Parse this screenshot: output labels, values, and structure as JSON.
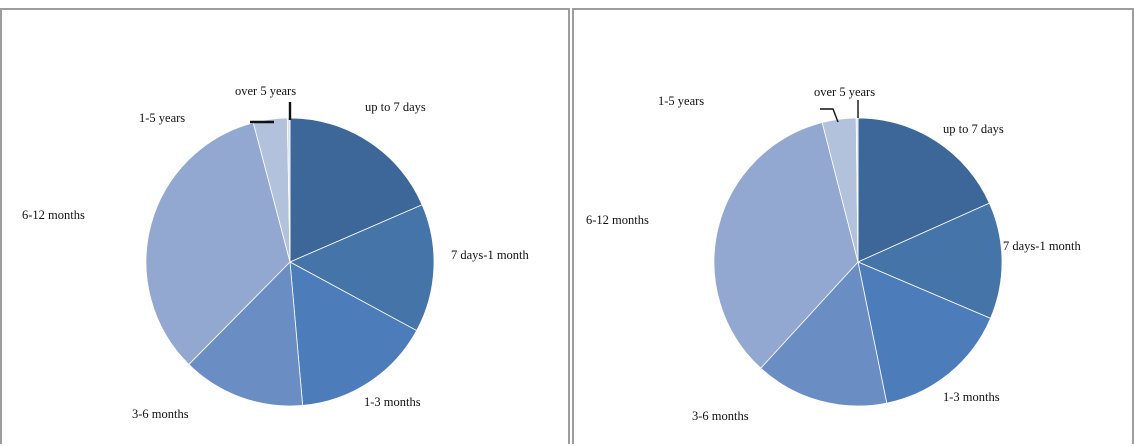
{
  "chart_data": [
    {
      "type": "pie",
      "title": "",
      "categories": [
        "up to 7 days",
        "7 days-1 month",
        "1-3 months",
        "3-6 months",
        "6-12 months",
        "1-5 years",
        "over 5 years"
      ],
      "values": [
        18.5,
        14.4,
        15.7,
        13.8,
        33.5,
        3.8,
        0.3
      ],
      "colors": [
        "#3e6799",
        "#4574a9",
        "#4c7dba",
        "#6a8ec4",
        "#93a8d0",
        "#b2c1dc",
        "#d7deec"
      ],
      "legend": "none"
    },
    {
      "type": "pie",
      "title": "",
      "categories": [
        "up to 7 days",
        "7 days-1 month",
        "1-3 months",
        "3-6 months",
        "6-12 months",
        "1-5 years",
        "over 5 years"
      ],
      "values": [
        18.3,
        13.1,
        15.4,
        15.0,
        34.2,
        3.8,
        0.2
      ],
      "colors": [
        "#3e6799",
        "#4574a9",
        "#4c7dba",
        "#6a8ec4",
        "#93a8d0",
        "#b2c1dc",
        "#d7deec"
      ],
      "legend": "none"
    }
  ]
}
